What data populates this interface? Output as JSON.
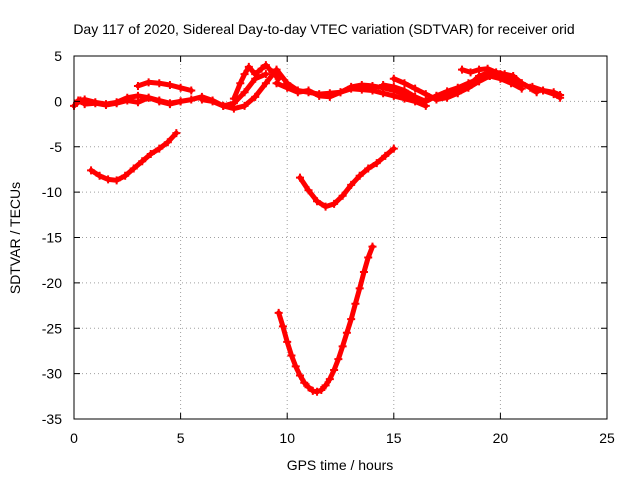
{
  "chart_data": {
    "type": "scatter",
    "title": "Day 117 of 2020, Sidereal Day-to-day VTEC variation (SDTVAR) for receiver orid",
    "xlabel": "GPS time / hours",
    "ylabel": "SDTVAR / TECUs",
    "xlim": [
      0,
      25
    ],
    "ylim": [
      -35,
      5
    ],
    "xticks": [
      0,
      5,
      10,
      15,
      20,
      25
    ],
    "yticks": [
      5,
      0,
      -5,
      -10,
      -15,
      -20,
      -25,
      -30,
      -35
    ],
    "grid": true,
    "marker": "plus",
    "color": "#ff0000",
    "series": [
      {
        "x": [
          0,
          0.3,
          0.5,
          1,
          1.5,
          2,
          2.5,
          3,
          3.5,
          4,
          4.5,
          5,
          5.5,
          6,
          6.5,
          7,
          7.5,
          8,
          8.5,
          9,
          9.5,
          10,
          10.5,
          11,
          11.5,
          12,
          12.5,
          13,
          13.5,
          14,
          14.5,
          15,
          15.5,
          16,
          16.5,
          17,
          17.5,
          18,
          18.5,
          19,
          19.5,
          20,
          20.5,
          21,
          21.5,
          22,
          22.5,
          22.8
        ],
        "y": [
          -0.5,
          0.1,
          -0.3,
          -0.2,
          -0.4,
          -0.2,
          0.1,
          -0.1,
          0.4,
          0.1,
          -0.2,
          0.0,
          0.2,
          0.5,
          0.1,
          -0.5,
          -0.8,
          -0.5,
          0.5,
          2.0,
          3.5,
          2.0,
          1.2,
          1.0,
          0.8,
          0.9,
          1.0,
          1.6,
          1.8,
          1.7,
          1.5,
          1.2,
          0.8,
          0.2,
          0.0,
          0.6,
          0.9,
          1.2,
          1.7,
          2.8,
          3.2,
          3.0,
          2.4,
          2.0,
          1.4,
          1.2,
          1.0,
          0.7
        ]
      },
      {
        "x": [
          0.2,
          0.5,
          1,
          1.5,
          2,
          2.5,
          3,
          3.5,
          4,
          4.5,
          5
        ],
        "y": [
          0.1,
          0.2,
          -0.1,
          -0.3,
          -0.1,
          0.4,
          0.6,
          0.4,
          0.0,
          -0.3,
          0.0
        ]
      },
      {
        "x": [
          3,
          3.5,
          4,
          4.5,
          5,
          5.5
        ],
        "y": [
          1.7,
          2.1,
          2.0,
          1.8,
          1.5,
          1.2
        ]
      },
      {
        "x": [
          6,
          6.5,
          7,
          7.5,
          8,
          8.5,
          9
        ],
        "y": [
          0.2,
          0.0,
          -0.5,
          -0.2,
          1.0,
          2.5,
          3.0
        ]
      },
      {
        "x": [
          7.5,
          7.8,
          8,
          8.2,
          8.5,
          8.8,
          9,
          9.3,
          9.6
        ],
        "y": [
          0.3,
          2.0,
          3.0,
          3.8,
          3.0,
          3.6,
          4.0,
          3.2,
          2.5
        ]
      },
      {
        "x": [
          9.5,
          10,
          10.5,
          11,
          11.5,
          12,
          12.5,
          13,
          13.5,
          14,
          14.5,
          15,
          15.5,
          16,
          16.5
        ],
        "y": [
          2.0,
          1.5,
          1.0,
          1.2,
          0.6,
          0.5,
          1.0,
          1.4,
          1.3,
          1.2,
          0.9,
          0.6,
          0.3,
          0.0,
          -0.5
        ]
      },
      {
        "x": [
          14.5,
          15,
          15.5,
          16,
          16.5,
          17,
          17.5,
          18,
          18.5,
          19,
          19.5,
          20,
          20.5,
          21
        ],
        "y": [
          1.8,
          1.6,
          1.2,
          0.5,
          0.0,
          0.6,
          1.1,
          1.5,
          2.0,
          2.5,
          2.8,
          2.5,
          2.0,
          1.4
        ]
      },
      {
        "x": [
          15,
          15.5,
          16,
          16.5,
          17,
          17.5,
          18,
          18.5,
          19,
          19.5
        ],
        "y": [
          2.5,
          2.0,
          1.4,
          0.8,
          0.2,
          0.4,
          0.9,
          1.5,
          2.2,
          2.8
        ]
      },
      {
        "x": [
          18.2,
          18.6,
          19,
          19.4,
          19.8,
          20.2,
          20.6,
          21,
          21.4,
          21.7
        ],
        "y": [
          3.5,
          3.2,
          3.5,
          3.6,
          3.2,
          3.0,
          2.8,
          2.0,
          1.5,
          1.0
        ]
      },
      {
        "x": [
          21.5,
          22,
          22.5,
          22.8
        ],
        "y": [
          1.6,
          1.2,
          0.8,
          0.4
        ]
      },
      {
        "x": [
          0.8,
          1.2,
          1.6,
          2.0,
          2.4,
          2.8,
          3.2,
          3.6,
          4.0,
          4.4,
          4.8
        ],
        "y": [
          -7.6,
          -8.2,
          -8.6,
          -8.7,
          -8.2,
          -7.4,
          -6.6,
          -5.8,
          -5.2,
          -4.5,
          -3.5
        ]
      },
      {
        "x": [
          10.6,
          11.0,
          11.4,
          11.8,
          12.2,
          12.6,
          13.0,
          13.4,
          13.8,
          14.2,
          14.6,
          15.0
        ],
        "y": [
          -8.4,
          -9.8,
          -11.0,
          -11.6,
          -11.3,
          -10.4,
          -9.2,
          -8.2,
          -7.4,
          -6.8,
          -6.0,
          -5.2
        ]
      },
      {
        "x": [
          9.6,
          9.8,
          10.0,
          10.2,
          10.4,
          10.6,
          10.8,
          11.0,
          11.2,
          11.4,
          11.6,
          11.8,
          12.0,
          12.2,
          12.4,
          12.6,
          12.8,
          13.0,
          13.2,
          13.4,
          13.6,
          13.8,
          14.0
        ],
        "y": [
          -23.3,
          -24.8,
          -26.5,
          -28.0,
          -29.2,
          -30.2,
          -31.0,
          -31.5,
          -31.9,
          -32.0,
          -31.8,
          -31.3,
          -30.6,
          -29.6,
          -28.4,
          -27.0,
          -25.5,
          -24.0,
          -22.3,
          -20.6,
          -18.8,
          -17.2,
          -16.0
        ]
      }
    ]
  }
}
